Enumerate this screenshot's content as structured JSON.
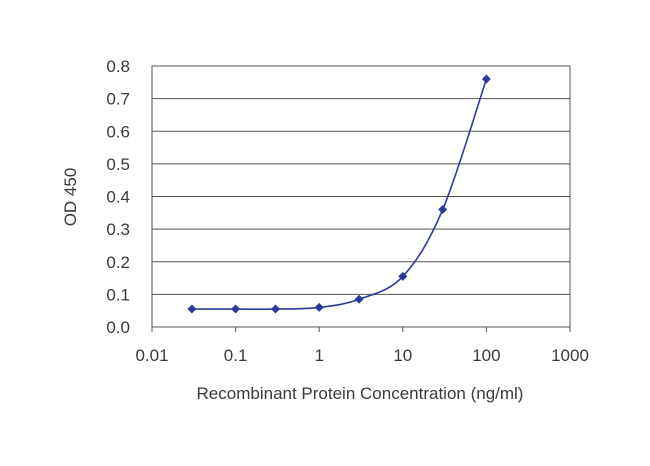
{
  "chart_data": {
    "type": "line",
    "title": "",
    "xlabel": "Recombinant Protein Concentration (ng/ml)",
    "ylabel": "OD 450",
    "x_scale": "log",
    "xlim": [
      0.01,
      1000
    ],
    "ylim": [
      0.0,
      0.8
    ],
    "x_ticks": [
      "0.01",
      "0.1",
      "1",
      "10",
      "100",
      "1000"
    ],
    "y_ticks": [
      "0.0",
      "0.1",
      "0.2",
      "0.3",
      "0.4",
      "0.5",
      "0.6",
      "0.7",
      "0.8"
    ],
    "grid": "horizontal",
    "legend": "none",
    "series": [
      {
        "color": "#2b3a9a",
        "marker": "diamond",
        "x": [
          0.03,
          0.1,
          0.3,
          1,
          3,
          10,
          30,
          100
        ],
        "y": [
          0.055,
          0.055,
          0.055,
          0.06,
          0.085,
          0.155,
          0.36,
          0.76
        ]
      }
    ]
  }
}
